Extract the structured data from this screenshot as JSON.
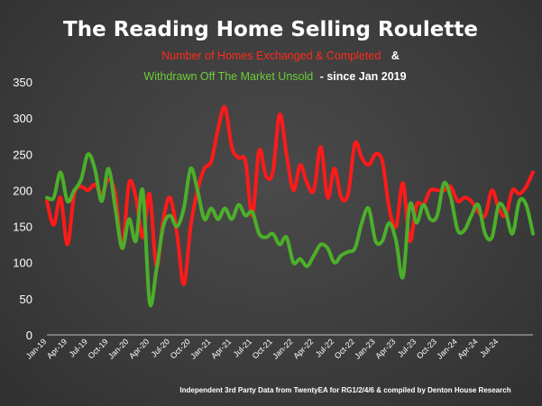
{
  "chart_data": {
    "type": "line",
    "title": "The Reading Home Selling Roulette",
    "subtitle_line1_red": "Number of Homes Exchanged & Completed",
    "subtitle_line1_sep": "&",
    "subtitle_line2_green": "Withdrawn Off The Market Unsold",
    "subtitle_line2_suffix": "- since Jan 2019",
    "source": "Independent 3rd Party Data from TwentyEA for RG1/2/4/6 & compiled by Denton House Research",
    "ylim": [
      0,
      350
    ],
    "yticks": [
      0,
      50,
      100,
      150,
      200,
      250,
      300,
      350
    ],
    "xtick_labels": [
      "Jan-19",
      "Apr-19",
      "Jul-19",
      "Oct-19",
      "Jan-20",
      "Apr-20",
      "Jul-20",
      "Oct-20",
      "Jan-21",
      "Apr-21",
      "Jul-21",
      "Oct-21",
      "Jan-22",
      "Apr-22",
      "Jul-22",
      "Oct-22",
      "Jan-23",
      "Apr-23",
      "Jul-23",
      "Oct-23",
      "Jan-24",
      "Apr-24",
      "Jul-24"
    ],
    "grid": false,
    "series": [
      {
        "color": "#ff1a1a",
        "values": [
          185,
          152,
          190,
          125,
          195,
          205,
          200,
          208,
          195,
          215,
          195,
          120,
          210,
          190,
          135,
          195,
          95,
          160,
          190,
          140,
          70,
          150,
          200,
          230,
          240,
          285,
          315,
          260,
          245,
          240,
          165,
          255,
          220,
          225,
          305,
          250,
          200,
          235,
          210,
          200,
          260,
          190,
          230,
          190,
          195,
          265,
          245,
          235,
          250,
          240,
          175,
          150,
          210,
          130,
          180,
          180,
          200,
          200,
          200,
          205,
          185,
          190,
          185,
          170,
          165,
          200,
          175,
          165,
          200,
          195,
          205,
          225
        ]
      },
      {
        "color": "#4caf2a",
        "values": [
          190,
          190,
          225,
          185,
          200,
          215,
          250,
          230,
          185,
          230,
          175,
          120,
          160,
          130,
          200,
          45,
          90,
          150,
          165,
          150,
          175,
          230,
          200,
          160,
          175,
          160,
          175,
          160,
          180,
          165,
          170,
          140,
          135,
          140,
          125,
          135,
          100,
          105,
          95,
          110,
          125,
          120,
          100,
          110,
          115,
          120,
          155,
          175,
          130,
          130,
          155,
          130,
          80,
          180,
          155,
          180,
          160,
          165,
          210,
          190,
          145,
          145,
          165,
          180,
          140,
          135,
          180,
          170,
          140,
          185,
          180,
          140
        ]
      }
    ]
  }
}
